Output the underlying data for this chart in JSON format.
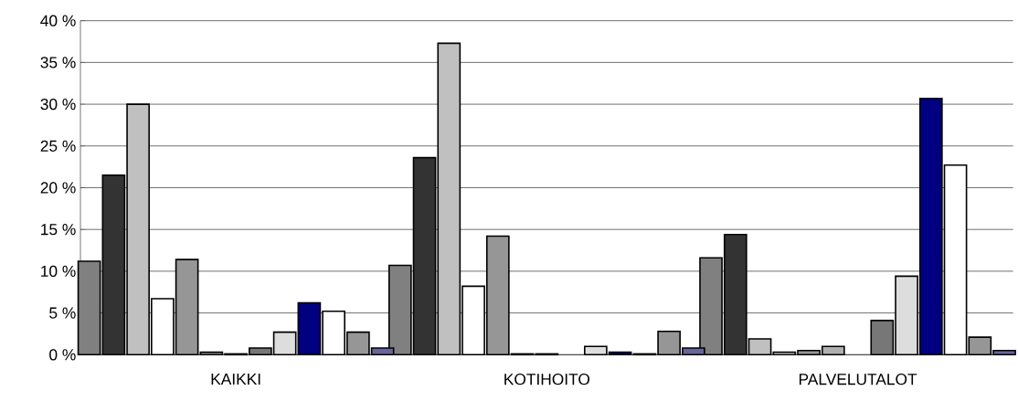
{
  "chart_data": {
    "type": "bar",
    "categories": [
      "KAIKKI",
      "KOTIHOITO",
      "PALVELUTALOT"
    ],
    "series": [
      {
        "color": "#808080",
        "values": [
          11.2,
          10.7,
          11.6
        ]
      },
      {
        "color": "#333333",
        "values": [
          21.5,
          23.6,
          14.4
        ]
      },
      {
        "color": "#c0c0c0",
        "values": [
          30.0,
          37.3,
          1.9
        ]
      },
      {
        "color": "#ffffff",
        "values": [
          6.7,
          8.2,
          0.3
        ]
      },
      {
        "color": "#969696",
        "values": [
          11.4,
          14.2,
          0.5
        ]
      },
      {
        "color": "#b0b0b0",
        "values": [
          0.3,
          0.1,
          1.0
        ]
      },
      {
        "color": "#e0e0e0",
        "values": [
          0.1,
          0.1,
          null
        ]
      },
      {
        "color": "#777777",
        "values": [
          0.8,
          null,
          4.1
        ]
      },
      {
        "color": "#dddddd",
        "values": [
          2.7,
          1.0,
          9.4
        ]
      },
      {
        "color": "#000080",
        "values": [
          6.2,
          0.3,
          30.7
        ]
      },
      {
        "color": "#ffffff",
        "values": [
          5.2,
          0.1,
          22.7
        ]
      },
      {
        "color": "#969696",
        "values": [
          2.7,
          2.8,
          2.1
        ]
      },
      {
        "color": "#666699",
        "values": [
          0.8,
          0.8,
          0.5
        ]
      }
    ],
    "ylim": [
      0,
      40
    ],
    "yticks": [
      {
        "value": 0,
        "label": "0 %"
      },
      {
        "value": 5,
        "label": "5 %"
      },
      {
        "value": 10,
        "label": "10 %"
      },
      {
        "value": 15,
        "label": "15 %"
      },
      {
        "value": 20,
        "label": "20 %"
      },
      {
        "value": 25,
        "label": "25 %"
      },
      {
        "value": 30,
        "label": "30 %"
      },
      {
        "value": 35,
        "label": "35 %"
      },
      {
        "value": 40,
        "label": "40 %"
      }
    ],
    "grid": "y"
  }
}
